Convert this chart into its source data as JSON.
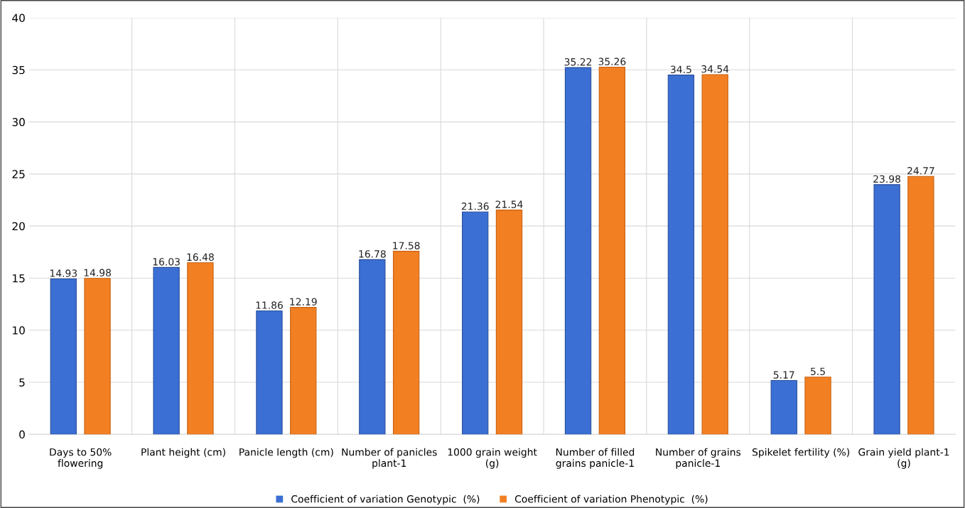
{
  "chart_data": {
    "type": "bar",
    "categories": [
      "Days to 50%\nflowering",
      "Plant height (cm)",
      "Panicle length (cm)",
      "Number of panicles\nplant-1",
      "1000 grain weight\n(g)",
      "Number of filled\ngrains panicle-1",
      "Number of grains\npanicle-1",
      "Spikelet fertility (%)",
      "Grain yield plant-1\n(g)"
    ],
    "series": [
      {
        "name": "Coefficient of variation Genotypic  (%)",
        "color": "#3b6fd4",
        "values": [
          14.93,
          16.03,
          11.86,
          16.78,
          21.36,
          35.22,
          34.5,
          5.17,
          23.98
        ]
      },
      {
        "name": "Coefficient of variation Phenotypic  (%)",
        "color": "#f28023",
        "values": [
          14.98,
          16.48,
          12.19,
          17.58,
          21.54,
          35.26,
          34.54,
          5.5,
          24.77
        ]
      }
    ],
    "ylim": [
      0,
      40
    ],
    "yticks": [
      0,
      5,
      10,
      15,
      20,
      25,
      30,
      35,
      40
    ],
    "grid": true,
    "legend": "bottom",
    "data_labels": true
  }
}
